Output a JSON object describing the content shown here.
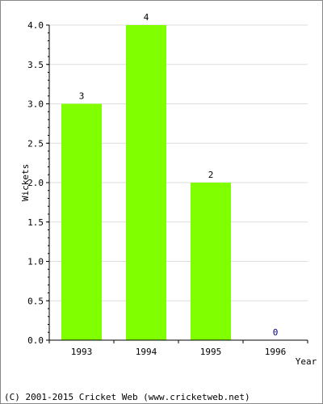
{
  "chart_data": {
    "type": "bar",
    "title": "",
    "xlabel": "Year",
    "ylabel": "Wickets",
    "categories": [
      "1993",
      "1994",
      "1995",
      "1996"
    ],
    "values": [
      3,
      4,
      2,
      0
    ],
    "data_labels": [
      "3",
      "4",
      "2",
      "0"
    ],
    "ylim": [
      0,
      4.0
    ],
    "yticks": [
      "0.0",
      "0.5",
      "1.0",
      "1.5",
      "2.0",
      "2.5",
      "3.0",
      "3.5",
      "4.0"
    ],
    "grid": true,
    "legend": "none",
    "bar_color": "#80ff00",
    "zero_label_color": "#000080"
  },
  "footer": "(C) 2001-2015 Cricket Web (www.cricketweb.net)"
}
